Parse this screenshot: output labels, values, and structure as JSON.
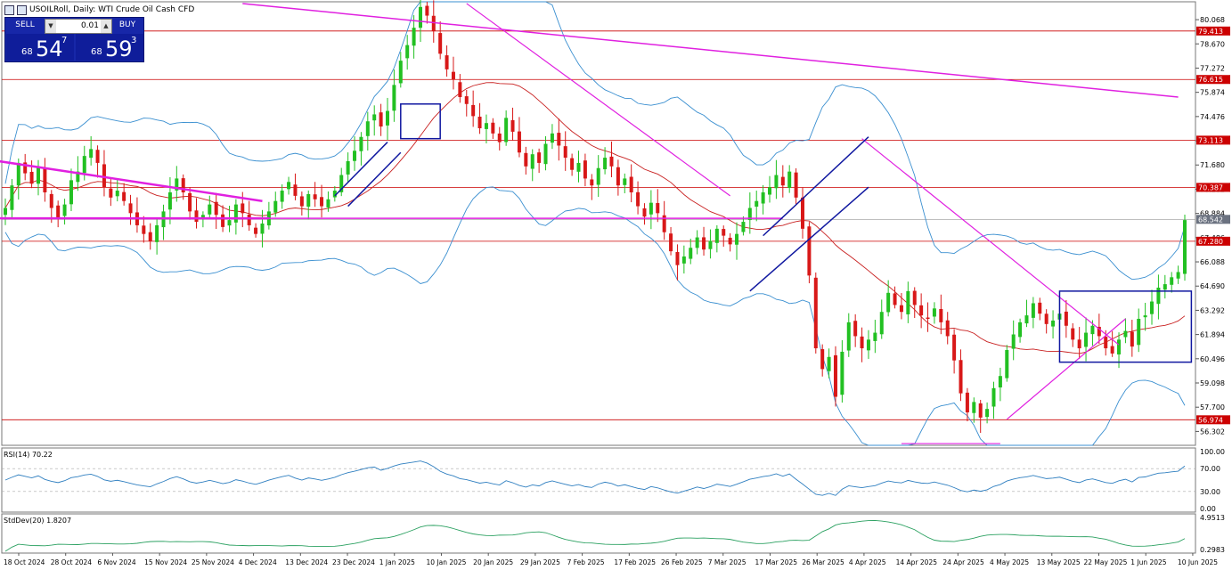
{
  "header": {
    "title": "USOILRoll, Daily:  WTI Crude Oil Cash CFD"
  },
  "trade_panel": {
    "sell_label": "SELL",
    "buy_label": "BUY",
    "lot": "0.01",
    "sell_price_small": "68",
    "sell_price_big": "54",
    "sell_price_sup": "7",
    "buy_price_small": "68",
    "buy_price_big": "59",
    "buy_price_sup": "3"
  },
  "chart_data": [
    {
      "type": "candlestick",
      "title": "USOILRoll, Daily:  WTI Crude Oil Cash CFD",
      "ylim": [
        55.5,
        81.1
      ],
      "y_tick_labels": [
        "80.068",
        "78.670",
        "77.272",
        "75.874",
        "74.476",
        "73.078",
        "71.680",
        "70.282",
        "68.884",
        "67.486",
        "66.088",
        "64.690",
        "63.292",
        "61.894",
        "60.496",
        "59.098",
        "57.700",
        "56.302"
      ],
      "x_tick_labels": [
        "18 Oct 2024",
        "28 Oct 2024",
        "6 Nov 2024",
        "15 Nov 2024",
        "25 Nov 2024",
        "4 Dec 2024",
        "13 Dec 2024",
        "23 Dec 2024",
        "1 Jan 2025",
        "10 Jan 2025",
        "20 Jan 2025",
        "29 Jan 2025",
        "7 Feb 2025",
        "17 Feb 2025",
        "26 Feb 2025",
        "7 Mar 2025",
        "17 Mar 2025",
        "26 Mar 2025",
        "4 Apr 2025",
        "14 Apr 2025",
        "24 Apr 2025",
        "4 May 2025",
        "13 May 2025",
        "22 May 2025",
        "1 Jun 2025",
        "10 Jun 2025"
      ],
      "close_series": [
        69.2,
        70.5,
        71.8,
        71.2,
        70.6,
        71.6,
        70.1,
        69.2,
        68.6,
        69.4,
        70.8,
        71.3,
        72.2,
        72.6,
        71.8,
        70.4,
        69.8,
        70.2,
        69.6,
        68.9,
        68.2,
        67.7,
        67.3,
        68.2,
        69.0,
        70.1,
        70.9,
        70.1,
        69.0,
        68.4,
        68.8,
        69.4,
        68.8,
        68.1,
        68.5,
        69.4,
        68.9,
        68.2,
        67.7,
        68.3,
        69.0,
        69.6,
        70.2,
        70.7,
        69.9,
        69.3,
        70.0,
        69.7,
        69.3,
        69.7,
        70.2,
        71.1,
        71.9,
        72.5,
        73.3,
        74.2,
        74.6,
        73.9,
        74.8,
        76.3,
        77.7,
        78.6,
        79.6,
        80.8,
        80.3,
        79.4,
        78.1,
        77.2,
        76.6,
        75.6,
        75.2,
        74.5,
        73.8,
        74.1,
        73.5,
        73.0,
        74.4,
        73.6,
        72.4,
        71.6,
        72.3,
        71.8,
        72.9,
        73.5,
        72.8,
        72.1,
        71.4,
        71.8,
        70.9,
        70.5,
        71.5,
        72.1,
        71.6,
        70.5,
        70.9,
        70.1,
        69.3,
        68.7,
        69.5,
        68.9,
        67.8,
        66.7,
        65.9,
        66.4,
        66.9,
        67.5,
        66.8,
        67.3,
        68.0,
        67.6,
        67.1,
        67.7,
        68.4,
        69.2,
        69.6,
        70.1,
        70.4,
        71.1,
        70.5,
        71.3,
        69.8,
        68.0,
        65.3,
        61.1,
        59.9,
        60.6,
        58.3,
        60.9,
        62.6,
        61.8,
        61.1,
        61.6,
        62.0,
        63.2,
        64.3,
        63.6,
        63.2,
        64.4,
        63.6,
        63.0,
        62.8,
        63.4,
        62.6,
        61.8,
        60.4,
        58.5,
        57.4,
        58.0,
        57.1,
        57.6,
        58.8,
        59.5,
        61.0,
        61.9,
        62.6,
        63.0,
        63.7,
        63.1,
        62.5,
        62.7,
        63.1,
        62.4,
        61.6,
        61.1,
        62.0,
        62.4,
        61.8,
        61.1,
        60.8,
        61.6,
        62.1,
        61.2,
        62.8,
        63.0,
        63.8,
        64.6,
        64.8,
        65.2,
        65.5,
        68.5
      ]
    },
    {
      "type": "line",
      "title": "RSI(14) 70.22",
      "ylim": [
        0,
        100
      ],
      "y_tick_labels": [
        "100.00",
        "70.00",
        "30.00",
        "0.00"
      ]
    },
    {
      "type": "line",
      "title": "StdDev(20) 1.8207",
      "y_tick_labels": [
        "4.9513",
        "0.2983"
      ]
    }
  ],
  "price_levels": [
    "79.413",
    "76.615",
    "73.113",
    "70.387",
    "67.280",
    "56.974"
  ],
  "current_price": "68.542",
  "colors": {
    "bull": "#22c022",
    "bear": "#d81818",
    "trendline": "#e020e0",
    "channel": "#1018a0",
    "level": "#cc0000",
    "band": "#3a8fd0",
    "ma": "#c82020"
  }
}
